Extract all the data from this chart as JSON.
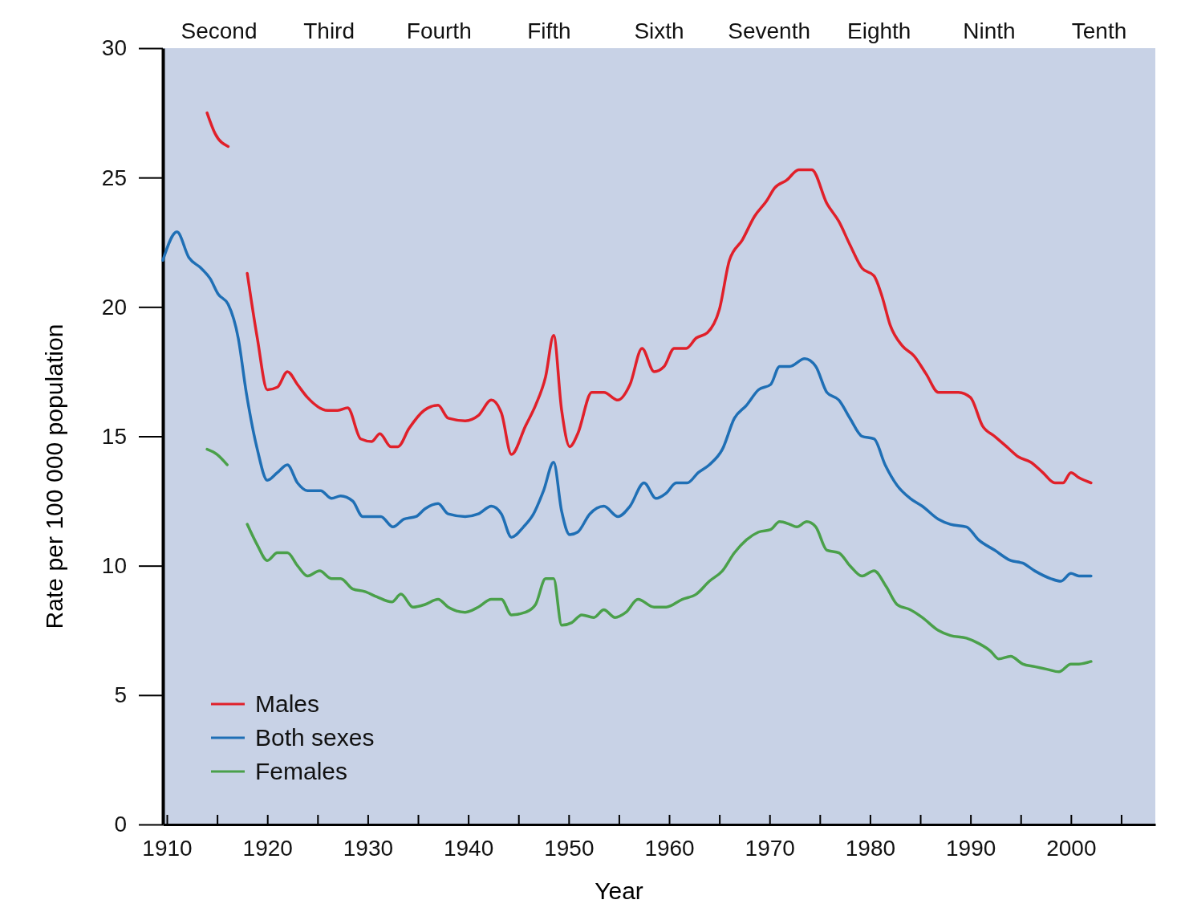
{
  "chart_data": {
    "type": "line",
    "xlabel": "Year",
    "ylabel": "Rate per 100 000 population",
    "xlim": [
      1909.6,
      2008.4
    ],
    "ylim": [
      0,
      30
    ],
    "xticks": [
      1910,
      {
        "value": 1915,
        "label": null
      },
      1920,
      {
        "value": 1925,
        "label": null
      },
      1930,
      {
        "value": 1935,
        "label": null
      },
      1940,
      {
        "value": 1945,
        "label": null
      },
      1950,
      {
        "value": 1955,
        "label": null
      },
      1960,
      {
        "value": 1965,
        "label": null
      },
      1970,
      {
        "value": 1975,
        "label": null
      },
      1980,
      {
        "value": 1985,
        "label": null
      },
      1990,
      {
        "value": 1995,
        "label": null
      },
      2000,
      {
        "value": 2005,
        "label": null
      }
    ],
    "yticks": [
      0,
      5,
      10,
      15,
      20,
      25,
      30
    ],
    "grid": false,
    "legend": "bottom left",
    "marker": "none",
    "line_style": "solid",
    "annotations": [
      "Second",
      "Third",
      "Fourth",
      "Fifth",
      "Sixth",
      "Seventh",
      "Eighth",
      "Ninth",
      "Tenth"
    ],
    "series": [
      {
        "name": "Males",
        "color": "#e0202a",
        "x": [
          1914,
          1914.8,
          1916.1,
          1917,
          1918,
          1919,
          1920,
          1921,
          1922,
          1923,
          1924,
          1926,
          1927,
          1928,
          1929.3,
          1930.4,
          1931.2,
          1932.3,
          1933,
          1934.1,
          1935.6,
          1937,
          1938,
          1939.7,
          1941,
          1942.3,
          1943.3,
          1944.3,
          1945.7,
          1946.7,
          1947.7,
          1948.5,
          1949.3,
          1950.1,
          1950.9,
          1952.3,
          1953.5,
          1954.9,
          1956.1,
          1957.3,
          1958.5,
          1959.5,
          1960.5,
          1961.7,
          1962.7,
          1963.8,
          1965,
          1966,
          1967.3,
          1968.5,
          1969.7,
          1970.5,
          1971.7,
          1972.9,
          1974.2,
          1975.7,
          1976.9,
          1978,
          1979.2,
          1980.4,
          1981.2,
          1982,
          1983.2,
          1984.4,
          1985.6,
          1986.8,
          1988.8,
          1990,
          1991.2,
          1992.4,
          1993.6,
          1994.8,
          1996,
          1997.2,
          1998.4,
          1999.2,
          2000,
          2000.8,
          2002
        ],
        "values": [
          27.5,
          26.7,
          26.2,
          null,
          21.3,
          18.8,
          16.8,
          16.9,
          17.5,
          17.0,
          16.5,
          16.0,
          16.0,
          16.1,
          14.9,
          14.8,
          15.1,
          14.6,
          14.6,
          15.3,
          16.0,
          16.2,
          15.7,
          15.6,
          15.8,
          16.4,
          15.9,
          14.3,
          15.4,
          16.2,
          17.3,
          18.9,
          16.0,
          14.6,
          15.1,
          16.7,
          16.7,
          16.4,
          17.0,
          18.4,
          17.5,
          17.7,
          18.4,
          18.4,
          18.8,
          19.0,
          19.9,
          21.8,
          22.6,
          23.5,
          24.1,
          24.6,
          24.9,
          25.3,
          25.3,
          24.0,
          23.3,
          22.4,
          21.5,
          21.2,
          20.4,
          19.3,
          18.5,
          18.1,
          17.4,
          16.7,
          16.7,
          16.5,
          15.4,
          15.0,
          14.6,
          14.2,
          14.0,
          13.6,
          13.2,
          13.2,
          13.6,
          13.4,
          13.2
        ]
      },
      {
        "name": "Both sexes",
        "color": "#1f6fb5",
        "x": [
          1909.6,
          1911,
          1912.2,
          1913.4,
          1914.3,
          1915.1,
          1916.1,
          1917.1,
          1917.9,
          1919,
          1920,
          1921,
          1922,
          1923,
          1924,
          1925.3,
          1926.4,
          1927.3,
          1928.5,
          1929.5,
          1930.3,
          1931.3,
          1932.5,
          1933.6,
          1934.8,
          1935.7,
          1937,
          1938,
          1939.7,
          1941,
          1942.3,
          1943.3,
          1944.3,
          1945.5,
          1946.5,
          1947.5,
          1948.5,
          1949.3,
          1950.1,
          1950.9,
          1952.1,
          1953.5,
          1954.9,
          1956.1,
          1957.5,
          1958.7,
          1959.7,
          1960.7,
          1961.8,
          1962.9,
          1964,
          1965.3,
          1966.5,
          1967.7,
          1968.9,
          1970.1,
          1971,
          1972,
          1973.5,
          1974.6,
          1975.7,
          1976.9,
          1978,
          1979.2,
          1980.4,
          1981.5,
          1982.7,
          1984,
          1985.2,
          1986.8,
          1988,
          1989.6,
          1990.8,
          1992.4,
          1994,
          1995.2,
          1996.4,
          1998,
          1999,
          2000,
          2000.8,
          2002
        ],
        "values": [
          21.8,
          22.9,
          21.9,
          21.5,
          21.1,
          20.5,
          20.1,
          18.8,
          16.7,
          14.5,
          13.3,
          13.6,
          13.9,
          13.2,
          12.9,
          12.9,
          12.6,
          12.7,
          12.5,
          11.9,
          11.9,
          11.9,
          11.5,
          11.8,
          11.9,
          12.2,
          12.4,
          12.0,
          11.9,
          12.0,
          12.3,
          12.0,
          11.1,
          11.5,
          12.0,
          12.9,
          14.0,
          12.1,
          11.2,
          11.3,
          12.0,
          12.3,
          11.9,
          12.3,
          13.2,
          12.6,
          12.8,
          13.2,
          13.2,
          13.6,
          13.9,
          14.5,
          15.7,
          16.2,
          16.8,
          17.0,
          17.7,
          17.7,
          18.0,
          17.7,
          16.7,
          16.4,
          15.7,
          15.0,
          14.9,
          13.9,
          13.1,
          12.6,
          12.3,
          11.8,
          11.6,
          11.5,
          11.0,
          10.6,
          10.2,
          10.1,
          9.8,
          9.5,
          9.4,
          9.7,
          9.6,
          9.6
        ]
      },
      {
        "name": "Females",
        "color": "#4aa04a",
        "x": [
          1914,
          1915,
          1916,
          1917,
          1918,
          1919,
          1920,
          1921,
          1922,
          1923,
          1924,
          1925.2,
          1926.4,
          1927.3,
          1928.5,
          1929.7,
          1930.9,
          1932.4,
          1933.3,
          1934.5,
          1935.7,
          1937,
          1938,
          1939.7,
          1941,
          1942.3,
          1943.3,
          1944.3,
          1945.7,
          1946.7,
          1947.7,
          1948.5,
          1949.3,
          1950.3,
          1951.3,
          1952.5,
          1953.5,
          1954.6,
          1955.7,
          1956.9,
          1958.5,
          1959.7,
          1961.3,
          1962.7,
          1964,
          1965.3,
          1966.5,
          1967.7,
          1968.9,
          1970.1,
          1971,
          1972,
          1972.7,
          1973.7,
          1974.6,
          1975.7,
          1976.9,
          1978,
          1979.2,
          1980.4,
          1981.6,
          1982.7,
          1984,
          1985.2,
          1986.8,
          1988,
          1989.6,
          1990.8,
          1992,
          1992.8,
          1994,
          1995.2,
          1996.4,
          1997.6,
          1998.8,
          2000,
          2000.8,
          2002
        ],
        "values": [
          14.5,
          14.3,
          13.9,
          null,
          11.6,
          10.8,
          10.2,
          10.5,
          10.5,
          10.0,
          9.6,
          9.8,
          9.5,
          9.5,
          9.1,
          9.0,
          8.8,
          8.6,
          8.9,
          8.4,
          8.5,
          8.7,
          8.4,
          8.2,
          8.4,
          8.7,
          8.7,
          8.1,
          8.2,
          8.5,
          9.5,
          9.5,
          7.7,
          7.8,
          8.1,
          8.0,
          8.3,
          8.0,
          8.2,
          8.7,
          8.4,
          8.4,
          8.7,
          8.9,
          9.4,
          9.8,
          10.5,
          11.0,
          11.3,
          11.4,
          11.7,
          11.6,
          11.5,
          11.7,
          11.5,
          10.6,
          10.5,
          10.0,
          9.6,
          9.8,
          9.2,
          8.5,
          8.3,
          8.0,
          7.5,
          7.3,
          7.2,
          7.0,
          6.7,
          6.4,
          6.5,
          6.2,
          6.1,
          6.0,
          5.9,
          6.2,
          6.2,
          6.3
        ]
      }
    ]
  }
}
